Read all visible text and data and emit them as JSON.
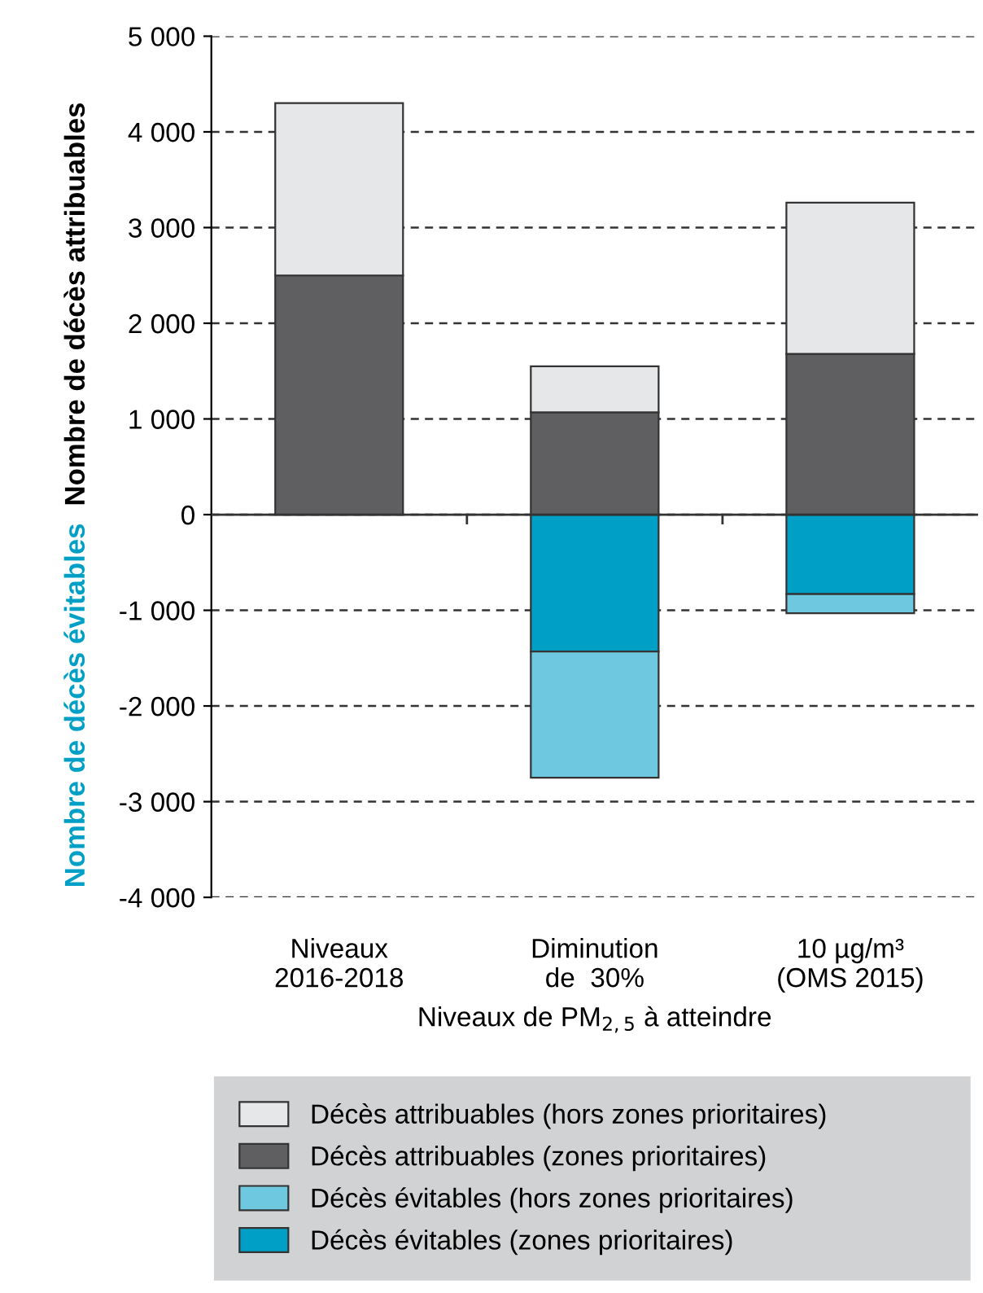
{
  "chart_data": {
    "type": "bar",
    "stacked": true,
    "categories": [
      "Niveaux\n2016-2018",
      "Diminution\nde  30%",
      "10 µg/m³\n(OMS 2015)"
    ],
    "series": [
      {
        "name": "Décès attribuables (zones prioritaires)",
        "color": "#5f5f61",
        "values": [
          2500,
          1070,
          1680
        ]
      },
      {
        "name": "Décès attribuables (hors zones prioritaires)",
        "color": "#e6e7e8",
        "values": [
          1800,
          480,
          1580
        ]
      },
      {
        "name": "Décès évitables (zones prioritaires)",
        "color": "#00a0c6",
        "values": [
          null,
          -1430,
          -830
        ]
      },
      {
        "name": "Décès évitables (hors zones prioritaires)",
        "color": "#6ec8e0",
        "values": [
          null,
          -1320,
          -200
        ]
      }
    ],
    "ylabel": "Nombre de décès attribuables",
    "annotations": [
      "Nombre de décès évitables"
    ],
    "xlabel": "Niveaux de PM$_{2,5}$ à atteindre",
    "ylim": [
      -4000,
      5000
    ],
    "yticks": [
      {
        "value": -4000,
        "label": "-4 000"
      },
      {
        "value": -3000,
        "label": "-3 000"
      },
      {
        "value": -2000,
        "label": "-2 000"
      },
      {
        "value": -1000,
        "label": "-1 000"
      },
      0,
      {
        "value": 1000,
        "label": "1 000"
      },
      {
        "value": 2000,
        "label": "2 000"
      },
      {
        "value": 3000,
        "label": "3 000"
      },
      {
        "value": 4000,
        "label": "4 000"
      },
      {
        "value": 5000,
        "label": "5 000"
      }
    ],
    "grid": "y",
    "legend": "bottom"
  }
}
